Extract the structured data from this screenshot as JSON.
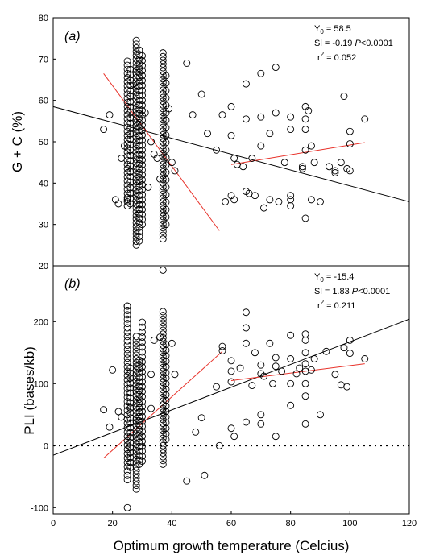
{
  "chart_data": [
    {
      "type": "scatter",
      "panel_label": "(a)",
      "ylabel": "G + C  (%)",
      "xlabel": "",
      "xlim": [
        0,
        120
      ],
      "ylim": [
        20,
        80
      ],
      "y_ticks": [
        "20",
        "30",
        "40",
        "50",
        "60",
        "70",
        "80"
      ],
      "x_ticks": [],
      "stats": {
        "y0": "Y",
        "y0_sub": "0",
        "y0_value": " = 58.5",
        "sl": "Sl = -0.19 ",
        "sl_p": "P",
        "sl_p_value": "<0.0001",
        "r2": "r",
        "r2_sup": "2",
        "r2_value": " = 0.052"
      },
      "regression_lines": [
        {
          "color": "#000000",
          "x": [
            0,
            120
          ],
          "y": [
            58.5,
            35.5
          ]
        },
        {
          "color": "#e8322a",
          "x": [
            17,
            56
          ],
          "y": [
            66.5,
            28.5
          ]
        },
        {
          "color": "#e8322a",
          "x": [
            60,
            105
          ],
          "y": [
            44.5,
            49.8
          ]
        }
      ],
      "columns": [
        {
          "x": 25,
          "y_min": 34.5,
          "y_max": 70,
          "step": 1
        },
        {
          "x": 26,
          "y_min": 35,
          "y_max": 68.5,
          "step": 1.3
        },
        {
          "x": 28,
          "y_min": 25,
          "y_max": 75,
          "step": 0.9
        },
        {
          "x": 29,
          "y_min": 26,
          "y_max": 73,
          "step": 1.1
        },
        {
          "x": 30,
          "y_min": 30,
          "y_max": 71,
          "step": 1.2
        },
        {
          "x": 37,
          "y_min": 26.5,
          "y_max": 72,
          "step": 0.9
        },
        {
          "x": 38,
          "y_min": 30,
          "y_max": 66,
          "step": 1.8
        }
      ],
      "points": [
        [
          17,
          53
        ],
        [
          19,
          56.5
        ],
        [
          21,
          36
        ],
        [
          22,
          35
        ],
        [
          23,
          46
        ],
        [
          24,
          49
        ],
        [
          25,
          36
        ],
        [
          27,
          64
        ],
        [
          31,
          57
        ],
        [
          32,
          39
        ],
        [
          33,
          50
        ],
        [
          34,
          47
        ],
        [
          35,
          46
        ],
        [
          36,
          41
        ],
        [
          39,
          58
        ],
        [
          40,
          45
        ],
        [
          41,
          43
        ],
        [
          45,
          69
        ],
        [
          47,
          56.5
        ],
        [
          50,
          61.5
        ],
        [
          52,
          52
        ],
        [
          55,
          48
        ],
        [
          57,
          56.5
        ],
        [
          58,
          35.5
        ],
        [
          60,
          58.5
        ],
        [
          60,
          51.5
        ],
        [
          60,
          37
        ],
        [
          61,
          36
        ],
        [
          61,
          46
        ],
        [
          62,
          44.5
        ],
        [
          64,
          44
        ],
        [
          65,
          64
        ],
        [
          65,
          55.5
        ],
        [
          65,
          38
        ],
        [
          66,
          37.5
        ],
        [
          67,
          46
        ],
        [
          68,
          37
        ],
        [
          70,
          66.5
        ],
        [
          70,
          56
        ],
        [
          70,
          49
        ],
        [
          71,
          34
        ],
        [
          73,
          52
        ],
        [
          73,
          36
        ],
        [
          75,
          68
        ],
        [
          75,
          57
        ],
        [
          76,
          35.5
        ],
        [
          78,
          45
        ],
        [
          80,
          56
        ],
        [
          80,
          53
        ],
        [
          80,
          37
        ],
        [
          80,
          36
        ],
        [
          80,
          34.5
        ],
        [
          84,
          44
        ],
        [
          84,
          43.5
        ],
        [
          85,
          58.5
        ],
        [
          85,
          55.5
        ],
        [
          85,
          53
        ],
        [
          85,
          48
        ],
        [
          85,
          31.5
        ],
        [
          86,
          57.5
        ],
        [
          87,
          49
        ],
        [
          87,
          36
        ],
        [
          88,
          45
        ],
        [
          90,
          35.5
        ],
        [
          93,
          44
        ],
        [
          95,
          42.5
        ],
        [
          95,
          43
        ],
        [
          97,
          45
        ],
        [
          98,
          61
        ],
        [
          99,
          43.5
        ],
        [
          100,
          52.5
        ],
        [
          100,
          49.5
        ],
        [
          100,
          43
        ],
        [
          105,
          55.5
        ]
      ]
    },
    {
      "type": "scatter",
      "panel_label": "(b)",
      "ylabel": "PLI (bases/kb)",
      "xlabel": "Optimum growth temperature (Celcius)",
      "xlim": [
        0,
        120
      ],
      "ylim": [
        -110,
        290
      ],
      "y_ticks": [
        "-100",
        "0",
        "100",
        "200"
      ],
      "x_ticks": [
        "0",
        "20",
        "40",
        "60",
        "80",
        "100",
        "120"
      ],
      "stats": {
        "y0": "Y",
        "y0_sub": "0",
        "y0_value": " = -15.4",
        "sl": "Sl = 1.83 ",
        "sl_p": "P",
        "sl_p_value": "<0.0001",
        "r2": "r",
        "r2_sup": "2",
        "r2_value": " = 0.211"
      },
      "zero_line": true,
      "regression_lines": [
        {
          "color": "#000000",
          "x": [
            0,
            120
          ],
          "y": [
            -15.4,
            204
          ]
        },
        {
          "color": "#e8322a",
          "x": [
            17,
            57
          ],
          "y": [
            -20,
            152
          ]
        },
        {
          "color": "#e8322a",
          "x": [
            60,
            105
          ],
          "y": [
            105,
            132
          ]
        }
      ],
      "columns": [
        {
          "x": 25,
          "y_min": -55,
          "y_max": 225,
          "step": 7
        },
        {
          "x": 26,
          "y_min": -35,
          "y_max": 130,
          "step": 8
        },
        {
          "x": 28,
          "y_min": -70,
          "y_max": 180,
          "step": 6
        },
        {
          "x": 29,
          "y_min": -30,
          "y_max": 140,
          "step": 7
        },
        {
          "x": 30,
          "y_min": -25,
          "y_max": 200,
          "step": 8
        },
        {
          "x": 37,
          "y_min": -30,
          "y_max": 220,
          "step": 6
        },
        {
          "x": 38,
          "y_min": 10,
          "y_max": 165,
          "step": 9
        }
      ],
      "points": [
        [
          17,
          58
        ],
        [
          19,
          30
        ],
        [
          20,
          122
        ],
        [
          22,
          55
        ],
        [
          23,
          46
        ],
        [
          25,
          -100
        ],
        [
          25,
          225
        ],
        [
          33,
          60
        ],
        [
          33,
          115
        ],
        [
          34,
          170
        ],
        [
          36,
          175
        ],
        [
          37,
          283
        ],
        [
          40,
          165
        ],
        [
          41,
          115
        ],
        [
          45,
          -57
        ],
        [
          48,
          22
        ],
        [
          50,
          45
        ],
        [
          51,
          -48
        ],
        [
          55,
          95
        ],
        [
          56,
          0
        ],
        [
          57,
          160
        ],
        [
          57,
          153
        ],
        [
          60,
          137
        ],
        [
          60,
          120
        ],
        [
          60,
          103
        ],
        [
          60,
          28
        ],
        [
          61,
          15
        ],
        [
          63,
          125
        ],
        [
          65,
          215
        ],
        [
          65,
          190
        ],
        [
          65,
          165
        ],
        [
          65,
          38
        ],
        [
          67,
          97
        ],
        [
          68,
          150
        ],
        [
          70,
          130
        ],
        [
          70,
          116
        ],
        [
          70,
          50
        ],
        [
          70,
          35
        ],
        [
          71,
          112
        ],
        [
          73,
          165
        ],
        [
          74,
          100
        ],
        [
          75,
          142
        ],
        [
          75,
          128
        ],
        [
          75,
          15
        ],
        [
          77,
          120
        ],
        [
          80,
          178
        ],
        [
          80,
          140
        ],
        [
          80,
          100
        ],
        [
          80,
          65
        ],
        [
          82,
          116
        ],
        [
          83,
          125
        ],
        [
          85,
          180
        ],
        [
          85,
          170
        ],
        [
          85,
          150
        ],
        [
          85,
          132
        ],
        [
          85,
          120
        ],
        [
          85,
          100
        ],
        [
          85,
          80
        ],
        [
          85,
          35
        ],
        [
          87,
          122
        ],
        [
          88,
          140
        ],
        [
          90,
          50
        ],
        [
          92,
          152
        ],
        [
          95,
          115
        ],
        [
          97,
          98
        ],
        [
          98,
          158
        ],
        [
          99,
          95
        ],
        [
          100,
          170
        ],
        [
          100,
          149
        ],
        [
          105,
          140
        ]
      ]
    }
  ]
}
